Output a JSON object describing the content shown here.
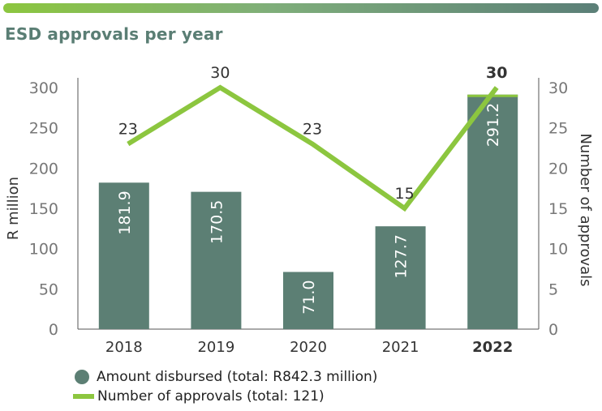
{
  "header": {
    "title": "ESD approvals per year"
  },
  "colors": {
    "bar": "#5c7f74",
    "line": "#8cc63f",
    "accent_bar_top": "#8cc63f"
  },
  "chart_data": {
    "type": "bar",
    "categories": [
      "2018",
      "2019",
      "2020",
      "2021",
      "2022"
    ],
    "highlight_category": "2022",
    "series": [
      {
        "name": "Amount disbursed (total: R842.3 million)",
        "type": "bar",
        "axis": "left",
        "values": [
          181.9,
          170.5,
          71.0,
          127.7,
          291.2
        ],
        "value_labels": [
          "181.9",
          "170.5",
          "71.0",
          "127.7",
          "291.2"
        ]
      },
      {
        "name": "Number of approvals (total: 121)",
        "type": "line",
        "axis": "right",
        "values": [
          23,
          30,
          23,
          15,
          30
        ],
        "value_labels": [
          "23",
          "30",
          "23",
          "15",
          "30"
        ]
      }
    ],
    "ylabel": "R million",
    "y2label": "Number of approvals",
    "ylim": [
      0,
      300
    ],
    "y2lim": [
      0,
      30
    ],
    "yticks": [
      "0",
      "50",
      "100",
      "150",
      "200",
      "250",
      "300"
    ],
    "y2ticks": [
      "0",
      "5",
      "10",
      "15",
      "20",
      "25",
      "30"
    ],
    "grid": false,
    "legend_position": "bottom-left"
  },
  "legend": {
    "items": [
      {
        "label": "Amount disbursed (total: R842.3 million)",
        "marker": "dot"
      },
      {
        "label": "Number of approvals (total: 121)",
        "marker": "line"
      }
    ]
  }
}
